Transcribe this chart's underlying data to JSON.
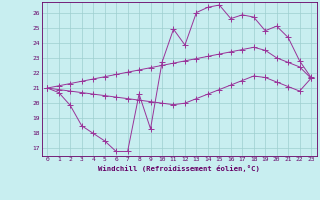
{
  "xlabel": "Windchill (Refroidissement éolien,°C)",
  "bg_color": "#c8eef0",
  "grid_color": "#9ecfcf",
  "line_color": "#993399",
  "xlim": [
    -0.5,
    23.5
  ],
  "ylim": [
    16.5,
    26.7
  ],
  "xticks": [
    0,
    1,
    2,
    3,
    4,
    5,
    6,
    7,
    8,
    9,
    10,
    11,
    12,
    13,
    14,
    15,
    16,
    17,
    18,
    19,
    20,
    21,
    22,
    23
  ],
  "yticks": [
    17,
    18,
    19,
    20,
    21,
    22,
    23,
    24,
    25,
    26
  ],
  "series1_x": [
    0,
    1,
    2,
    3,
    4,
    5,
    6,
    7,
    8,
    9,
    10,
    11,
    12,
    13,
    14,
    15,
    16,
    17,
    18,
    19,
    20,
    21,
    22,
    23
  ],
  "series1_y": [
    21.0,
    20.7,
    19.85,
    18.5,
    18.0,
    17.5,
    16.8,
    16.8,
    20.6,
    18.3,
    22.7,
    24.9,
    23.85,
    26.0,
    26.35,
    26.5,
    25.6,
    25.85,
    25.7,
    24.8,
    25.1,
    24.35,
    22.8,
    21.7
  ],
  "series2_x": [
    0,
    1,
    2,
    3,
    4,
    5,
    6,
    7,
    8,
    9,
    10,
    11,
    12,
    13,
    14,
    15,
    16,
    17,
    18,
    19,
    20,
    21,
    22,
    23
  ],
  "series2_y": [
    21.0,
    21.15,
    21.3,
    21.45,
    21.6,
    21.75,
    21.9,
    22.05,
    22.2,
    22.35,
    22.5,
    22.65,
    22.8,
    22.95,
    23.1,
    23.25,
    23.4,
    23.55,
    23.7,
    23.5,
    23.0,
    22.7,
    22.4,
    21.65
  ],
  "series3_x": [
    0,
    1,
    2,
    3,
    4,
    5,
    6,
    7,
    8,
    9,
    10,
    11,
    12,
    13,
    14,
    15,
    16,
    17,
    18,
    19,
    20,
    21,
    22,
    23
  ],
  "series3_y": [
    21.0,
    20.9,
    20.8,
    20.7,
    20.6,
    20.5,
    20.4,
    20.3,
    20.2,
    20.1,
    20.0,
    19.9,
    20.0,
    20.3,
    20.6,
    20.9,
    21.2,
    21.5,
    21.8,
    21.7,
    21.4,
    21.1,
    20.8,
    21.65
  ]
}
